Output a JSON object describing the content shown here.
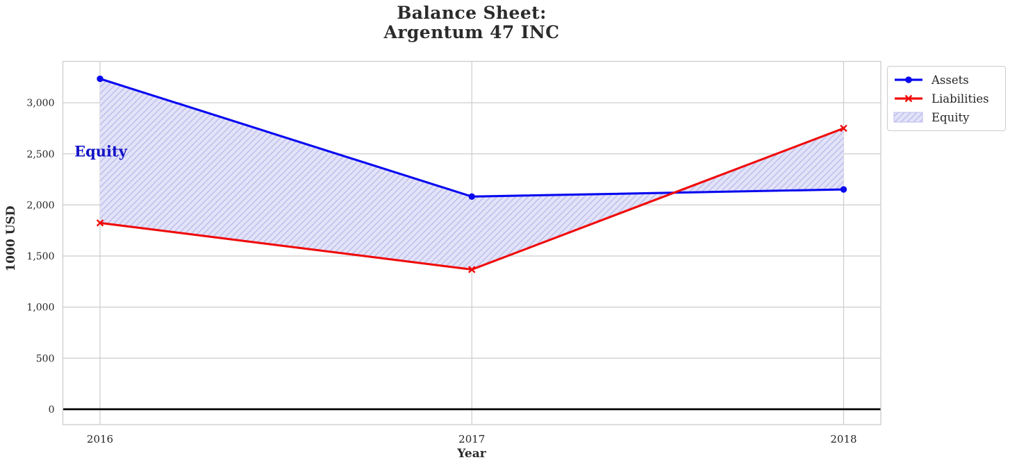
{
  "chart_data": {
    "type": "line",
    "title": "Balance Sheet:\nArgentum 47 INC",
    "xlabel": "Year",
    "ylabel": "1000 USD",
    "x": [
      2016,
      2017,
      2018
    ],
    "xtick_labels": [
      "2016",
      "2017",
      "2018"
    ],
    "series": [
      {
        "name": "Assets",
        "values": [
          3235,
          2082,
          2152
        ],
        "color": "#0808f0",
        "marker": "circle"
      },
      {
        "name": "Liabilities",
        "values": [
          1824,
          1368,
          2750
        ],
        "color": "#f00a0a",
        "marker": "x"
      },
      {
        "name": "Equity",
        "role": "fill_between_assets_liabilities",
        "values": [
          1411,
          714,
          -598
        ],
        "facecolor": "#e3e3f8",
        "hatch_color": "#bdbdee",
        "hatch": "///"
      }
    ],
    "annotation": {
      "text": "Equity",
      "x": 2016,
      "y": 2530,
      "color": "#1414c8"
    },
    "xlim": [
      2015.9,
      2018.1
    ],
    "ylim": [
      -150,
      3405
    ],
    "yticks": {
      "values": [
        0,
        500,
        1000,
        1500,
        2000,
        2500,
        3000
      ],
      "labels": [
        "0",
        "500",
        "1,000",
        "1,500",
        "2,000",
        "2,500",
        "3,000"
      ]
    },
    "grid": true,
    "zero_line": true,
    "legend_position": "upper right outside"
  },
  "colors": {
    "grid": "#cccccc",
    "spine": "#c9c9c9",
    "text": "#262626",
    "title": "#2b2b2b",
    "zero_line": "#000000",
    "background": "#ffffff"
  }
}
